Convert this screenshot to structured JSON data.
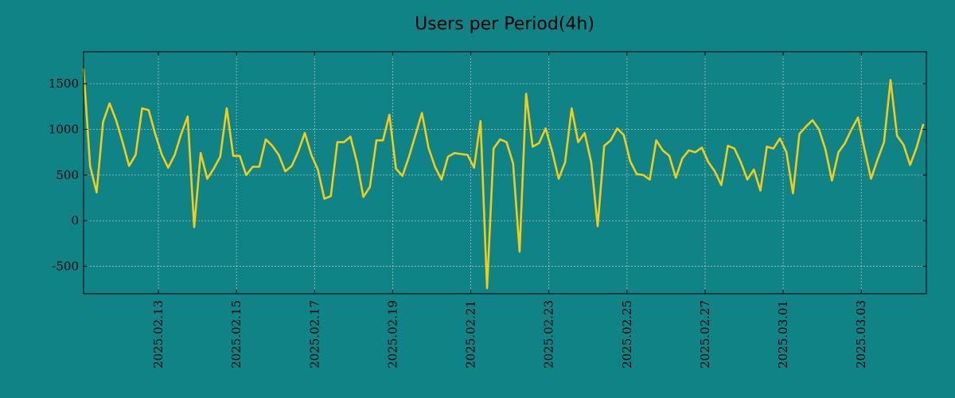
{
  "chart_data": {
    "type": "line",
    "title": "Users per Period(4h)",
    "xlabel": "",
    "ylabel": "",
    "grid": true,
    "ylim": [
      -800,
      1850
    ],
    "xlim": [
      0,
      129.5
    ],
    "yticks": [
      {
        "value": 1500,
        "label": "1500"
      },
      {
        "value": 1000,
        "label": "1000"
      },
      {
        "value": 500,
        "label": "500"
      },
      {
        "value": 0,
        "label": "0"
      },
      {
        "value": -500,
        "label": "-500"
      }
    ],
    "xticks": [
      {
        "index": 11.5,
        "label": "2025.02.13"
      },
      {
        "index": 23.5,
        "label": "2025.02.15"
      },
      {
        "index": 35.5,
        "label": "2025.02.17"
      },
      {
        "index": 47.5,
        "label": "2025.02.19"
      },
      {
        "index": 59.5,
        "label": "2025.02.21"
      },
      {
        "index": 71.5,
        "label": "2025.02.23"
      },
      {
        "index": 83.5,
        "label": "2025.02.25"
      },
      {
        "index": 95.5,
        "label": "2025.02.27"
      },
      {
        "index": 107.5,
        "label": "2025.03.01"
      },
      {
        "index": 119.5,
        "label": "2025.03.03"
      }
    ],
    "series": [
      {
        "name": "users",
        "color": "#f2cd17",
        "values": [
          1660,
          600,
          310,
          1080,
          1285,
          1100,
          860,
          600,
          720,
          1230,
          1210,
          950,
          730,
          580,
          720,
          950,
          1140,
          -70,
          740,
          460,
          570,
          700,
          1230,
          710,
          710,
          500,
          590,
          590,
          890,
          820,
          720,
          540,
          600,
          760,
          960,
          720,
          560,
          240,
          270,
          860,
          860,
          920,
          640,
          260,
          370,
          880,
          880,
          1160,
          570,
          490,
          700,
          940,
          1180,
          800,
          590,
          450,
          700,
          740,
          730,
          720,
          580,
          1090,
          -740,
          790,
          890,
          860,
          630,
          -340,
          1390,
          810,
          850,
          1010,
          760,
          460,
          640,
          1230,
          860,
          960,
          640,
          -60,
          820,
          880,
          1010,
          940,
          650,
          510,
          500,
          450,
          880,
          770,
          710,
          470,
          680,
          770,
          750,
          800,
          640,
          540,
          390,
          820,
          790,
          640,
          450,
          560,
          330,
          810,
          790,
          900,
          750,
          300,
          950,
          1030,
          1100,
          1000,
          780,
          440,
          750,
          850,
          1000,
          1130,
          780,
          460,
          670,
          860,
          1540,
          930,
          830,
          610,
          800,
          1050
        ]
      }
    ]
  }
}
